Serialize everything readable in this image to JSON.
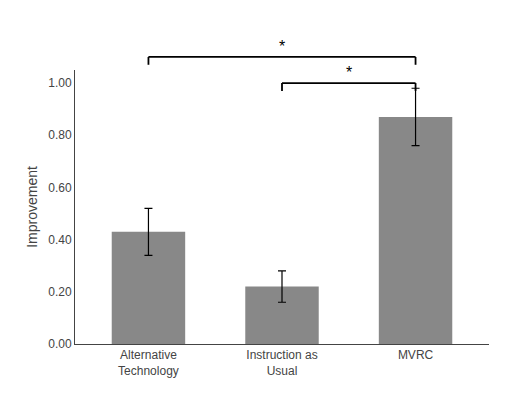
{
  "chart_data": {
    "type": "bar",
    "categories": [
      "Alternative\nTechnology",
      "Instruction as\nUsual",
      "MVRC"
    ],
    "values": [
      0.43,
      0.22,
      0.87
    ],
    "errors": [
      0.09,
      0.06,
      0.11
    ],
    "color": "#888888",
    "ylabel": "Improvement",
    "ylim": [
      0.0,
      1.05
    ],
    "yticks": [
      {
        "value": 0.0,
        "label": "0.00"
      },
      {
        "value": 0.2,
        "label": "0.20"
      },
      {
        "value": 0.4,
        "label": "0.40"
      },
      {
        "value": 0.6,
        "label": "0.60"
      },
      {
        "value": 0.8,
        "label": "0.80"
      },
      {
        "value": 1.0,
        "label": "1.00"
      }
    ],
    "grid": false,
    "annotations": [
      {
        "text": "*",
        "from": "Alternative\nTechnology",
        "to": "MVRC",
        "y": 1.1,
        "drop": 0.03
      },
      {
        "text": "*",
        "from": "Instruction as\nUsual",
        "to": "MVRC",
        "y": 1.0,
        "drop": 0.03
      }
    ]
  }
}
